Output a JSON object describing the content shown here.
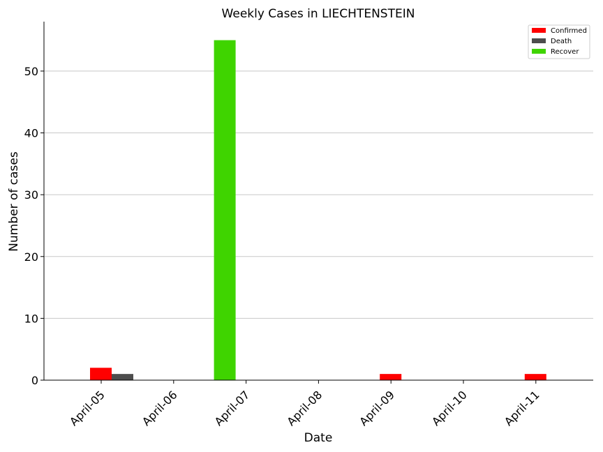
{
  "chart_data": {
    "type": "bar",
    "title": "Weekly Cases in LIECHTENSTEIN",
    "xlabel": "Date",
    "ylabel": "Number of cases",
    "categories": [
      "April-05",
      "April-06",
      "April-07",
      "April-08",
      "April-09",
      "April-10",
      "April-11"
    ],
    "series": [
      {
        "name": "Confirmed",
        "color": "#ff0000",
        "values": [
          2,
          0,
          0,
          0,
          1,
          0,
          1
        ]
      },
      {
        "name": "Death",
        "color": "#4d4d4d",
        "values": [
          1,
          0,
          0,
          0,
          0,
          0,
          0
        ]
      },
      {
        "name": "Recover",
        "color": "#3fd400",
        "values": [
          0,
          0,
          55,
          0,
          0,
          0,
          0
        ]
      }
    ],
    "ylim": [
      0,
      58
    ],
    "yticks": [
      0,
      10,
      20,
      30,
      40,
      50
    ],
    "grid": "horizontal",
    "legend_position": "top-right"
  }
}
